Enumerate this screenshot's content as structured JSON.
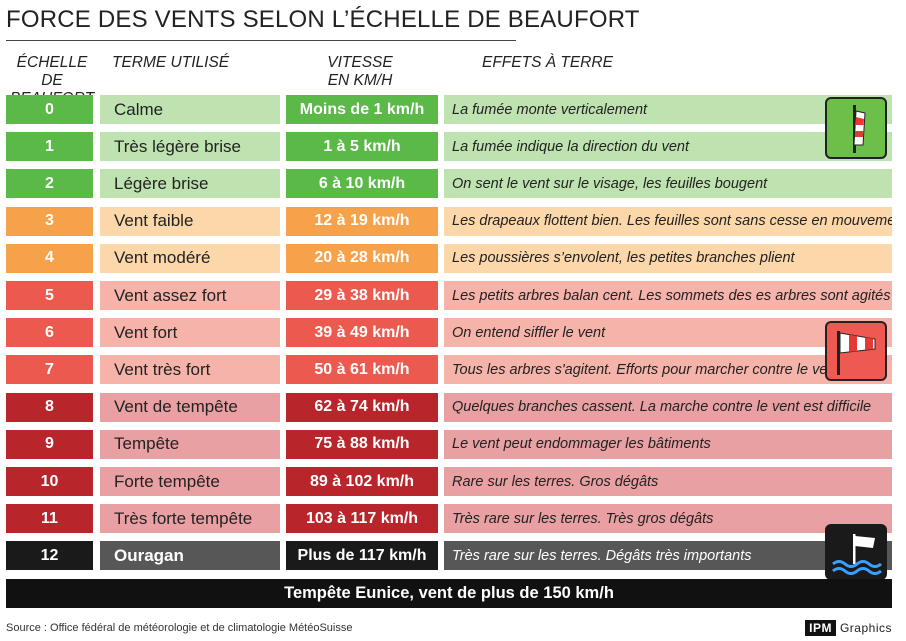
{
  "title": "FORCE DES VENTS SELON L’ÉCHELLE DE BEAUFORT",
  "headers": {
    "scale_l1": "ÉCHELLE DE",
    "scale_l2": "BEAUFORT",
    "term": "TERME UTILISÉ",
    "speed_l1": "VITESSE",
    "speed_l2": "EN KM/H",
    "effects": "EFFETS À TERRE"
  },
  "rows": [
    {
      "num": "0",
      "term": "Calme",
      "speed": "Moins de 1 km/h",
      "effect": "La fumée monte verticalement",
      "colors": {
        "num": "#5bb948",
        "term": "#bfe3b0",
        "speed": "#5bb948",
        "effect": "#bfe3b0",
        "num_text": "#ffffff",
        "speed_text": "#ffffff",
        "term_text": "#222222",
        "effect_text": "#222222"
      }
    },
    {
      "num": "1",
      "term": "Très légère brise",
      "speed": "1 à 5 km/h",
      "effect": "La fumée indique la direction du vent",
      "colors": {
        "num": "#5bb948",
        "term": "#bfe3b0",
        "speed": "#5bb948",
        "effect": "#bfe3b0",
        "num_text": "#ffffff",
        "speed_text": "#ffffff",
        "term_text": "#222222",
        "effect_text": "#222222"
      }
    },
    {
      "num": "2",
      "term": "Légère brise",
      "speed": "6 à 10 km/h",
      "effect": "On sent le vent sur le visage, les feuilles bougent",
      "colors": {
        "num": "#5bb948",
        "term": "#bfe3b0",
        "speed": "#5bb948",
        "effect": "#bfe3b0",
        "num_text": "#ffffff",
        "speed_text": "#ffffff",
        "term_text": "#222222",
        "effect_text": "#222222"
      }
    },
    {
      "num": "3",
      "term": "Vent faible",
      "speed": "12 à 19 km/h",
      "effect": "Les drapeaux flottent bien. Les feuilles sont sans cesse en mouvement",
      "colors": {
        "num": "#f6a24a",
        "term": "#fcd7a9",
        "speed": "#f6a24a",
        "effect": "#fcd7a9",
        "num_text": "#ffffff",
        "speed_text": "#ffffff",
        "term_text": "#222222",
        "effect_text": "#222222"
      }
    },
    {
      "num": "4",
      "term": "Vent modéré",
      "speed": "20 à 28 km/h",
      "effect": "Les poussières s’envolent, les petites branches plient",
      "colors": {
        "num": "#f6a24a",
        "term": "#fcd7a9",
        "speed": "#f6a24a",
        "effect": "#fcd7a9",
        "num_text": "#ffffff",
        "speed_text": "#ffffff",
        "term_text": "#222222",
        "effect_text": "#222222"
      }
    },
    {
      "num": "5",
      "term": "Vent assez fort",
      "speed": "29 à 38 km/h",
      "effect": "Les petits arbres balan cent. Les sommets des es arbres sont agités",
      "colors": {
        "num": "#ec5a4f",
        "term": "#f6b3aa",
        "speed": "#ec5a4f",
        "effect": "#f6b3aa",
        "num_text": "#ffffff",
        "speed_text": "#ffffff",
        "term_text": "#222222",
        "effect_text": "#222222"
      }
    },
    {
      "num": "6",
      "term": "Vent fort",
      "speed": "39 à 49 km/h",
      "effect": "On entend siffler le vent",
      "colors": {
        "num": "#ec5a4f",
        "term": "#f6b3aa",
        "speed": "#ec5a4f",
        "effect": "#f6b3aa",
        "num_text": "#ffffff",
        "speed_text": "#ffffff",
        "term_text": "#222222",
        "effect_text": "#222222"
      }
    },
    {
      "num": "7",
      "term": "Vent très fort",
      "speed": "50 à 61 km/h",
      "effect": "Tous les arbres s'agitent. Efforts pour marcher contre le vent",
      "colors": {
        "num": "#ec5a4f",
        "term": "#f6b3aa",
        "speed": "#ec5a4f",
        "effect": "#f6b3aa",
        "num_text": "#ffffff",
        "speed_text": "#ffffff",
        "term_text": "#222222",
        "effect_text": "#222222"
      }
    },
    {
      "num": "8",
      "term": "Vent de tempête",
      "speed": "62 à 74 km/h",
      "effect": "Quelques branches cassent. La marche contre le vent est difficile",
      "colors": {
        "num": "#b8252b",
        "term": "#e9a0a2",
        "speed": "#b8252b",
        "effect": "#e9a0a2",
        "num_text": "#ffffff",
        "speed_text": "#ffffff",
        "term_text": "#222222",
        "effect_text": "#222222"
      }
    },
    {
      "num": "9",
      "term": "Tempête",
      "speed": "75 à 88 km/h",
      "effect": "Le vent peut endommager les bâtiments",
      "colors": {
        "num": "#b8252b",
        "term": "#e9a0a2",
        "speed": "#b8252b",
        "effect": "#e9a0a2",
        "num_text": "#ffffff",
        "speed_text": "#ffffff",
        "term_text": "#222222",
        "effect_text": "#222222"
      }
    },
    {
      "num": "10",
      "term": "Forte tempête",
      "speed": "89 à 102 km/h",
      "effect": "Rare sur les terres.  Gros dégâts",
      "colors": {
        "num": "#b8252b",
        "term": "#e9a0a2",
        "speed": "#b8252b",
        "effect": "#e9a0a2",
        "num_text": "#ffffff",
        "speed_text": "#ffffff",
        "term_text": "#222222",
        "effect_text": "#222222"
      }
    },
    {
      "num": "11",
      "term": "Très forte tempête",
      "speed": "103 à 117 km/h",
      "effect": "Très rare sur les terres. Très gros dégâts",
      "colors": {
        "num": "#b8252b",
        "term": "#e9a0a2",
        "speed": "#b8252b",
        "effect": "#e9a0a2",
        "num_text": "#ffffff",
        "speed_text": "#ffffff",
        "term_text": "#222222",
        "effect_text": "#222222"
      }
    },
    {
      "num": "12",
      "term": "Ouragan",
      "speed": "Plus de 117 km/h",
      "effect": "Très rare sur les terres. Dégâts très importants",
      "colors": {
        "num": "#1a1a1a",
        "term": "#575757",
        "speed": "#1a1a1a",
        "effect": "#575757",
        "num_text": "#ffffff",
        "speed_text": "#ffffff",
        "term_text": "#ffffff",
        "effect_text": "#ffffff"
      }
    }
  ],
  "banner": "Tempête Eunice, vent de plus de 150  km/h",
  "source": "Source : Office fédéral de météorologie et de climatologie MétéoSuisse",
  "logo": {
    "brand": "IPM",
    "suffix": "Graphics"
  },
  "icons": [
    "windsock-calm-icon",
    "windsock-strong-icon",
    "storm-waves-icon"
  ]
}
